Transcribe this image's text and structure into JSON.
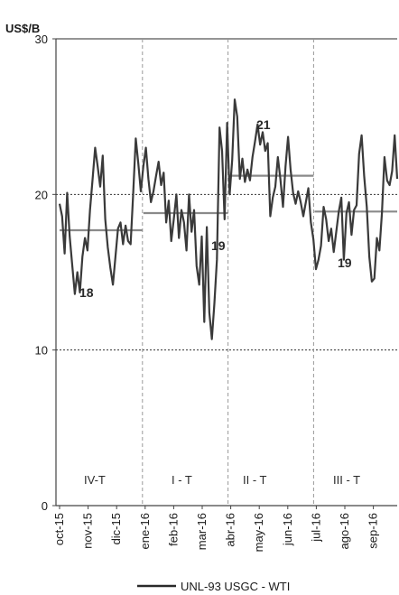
{
  "chart_data": {
    "type": "line",
    "y_unit_label": "US$/B",
    "ylim": [
      0,
      30
    ],
    "yticks": [
      0,
      10,
      20,
      30
    ],
    "dotted_reference_lines": [
      10,
      20
    ],
    "x_tick_labels": [
      "oct-15",
      "nov-15",
      "dic-15",
      "ene-16",
      "feb-16",
      "mar-16",
      "abr-16",
      "may-16",
      "jun-16",
      "jul-16",
      "ago-16",
      "sep-16"
    ],
    "grid": false,
    "legend_position": "bottom-center",
    "series": [
      {
        "name": "UNL-93 USGC - WTI",
        "color": "#3a3a3a",
        "values": [
          19.4,
          18.6,
          16.2,
          20.1,
          17.3,
          15.4,
          13.6,
          15.0,
          13.7,
          16.0,
          17.2,
          16.4,
          19.0,
          21.0,
          23.0,
          21.8,
          20.5,
          22.5,
          18.4,
          16.6,
          15.3,
          14.2,
          16.0,
          17.8,
          18.2,
          16.8,
          18.0,
          17.0,
          16.8,
          20.0,
          23.6,
          22.0,
          20.2,
          21.8,
          23.0,
          21.0,
          19.5,
          20.2,
          21.2,
          22.1,
          20.6,
          21.4,
          18.2,
          19.6,
          17.0,
          18.4,
          20.0,
          17.2,
          19.0,
          18.2,
          16.4,
          20.0,
          17.6,
          19.0,
          15.4,
          14.2,
          17.3,
          11.8,
          17.9,
          12.4,
          10.7,
          13.0,
          15.8,
          24.3,
          22.8,
          18.4,
          24.6,
          20.0,
          22.2,
          26.1,
          25.0,
          21.0,
          22.3,
          20.8,
          21.6,
          20.9,
          22.4,
          23.4,
          24.5,
          23.2,
          24.0,
          22.8,
          23.3,
          18.6,
          19.8,
          20.5,
          22.4,
          21.0,
          19.2,
          21.8,
          23.7,
          21.6,
          20.1,
          19.4,
          20.2,
          19.5,
          18.6,
          19.5,
          20.4,
          18.2,
          17.1,
          15.2,
          15.8,
          16.7,
          19.2,
          18.4,
          17.0,
          17.8,
          16.3,
          17.6,
          18.9,
          19.8,
          15.8,
          18.8,
          19.5,
          17.4,
          19.0,
          19.3,
          22.6,
          23.8,
          21.2,
          19.2,
          16.0,
          14.4,
          14.6,
          17.2,
          16.4,
          18.8,
          22.4,
          20.9,
          20.6,
          21.5,
          23.8,
          21.0
        ]
      }
    ],
    "period_averages": [
      {
        "label": "18",
        "value": 17.7,
        "from": "oct-15",
        "to": "ene-16"
      },
      {
        "label": "19",
        "value": 18.8,
        "from": "ene-16",
        "to": "abr-16"
      },
      {
        "label": "21",
        "value": 21.2,
        "from": "abr-16",
        "to": "jul-16"
      },
      {
        "label": "19",
        "value": 18.9,
        "from": "jul-16",
        "to": "sep-16"
      }
    ],
    "quarter_labels": [
      "IV-T",
      "I - T",
      "II - T",
      "III - T"
    ]
  }
}
